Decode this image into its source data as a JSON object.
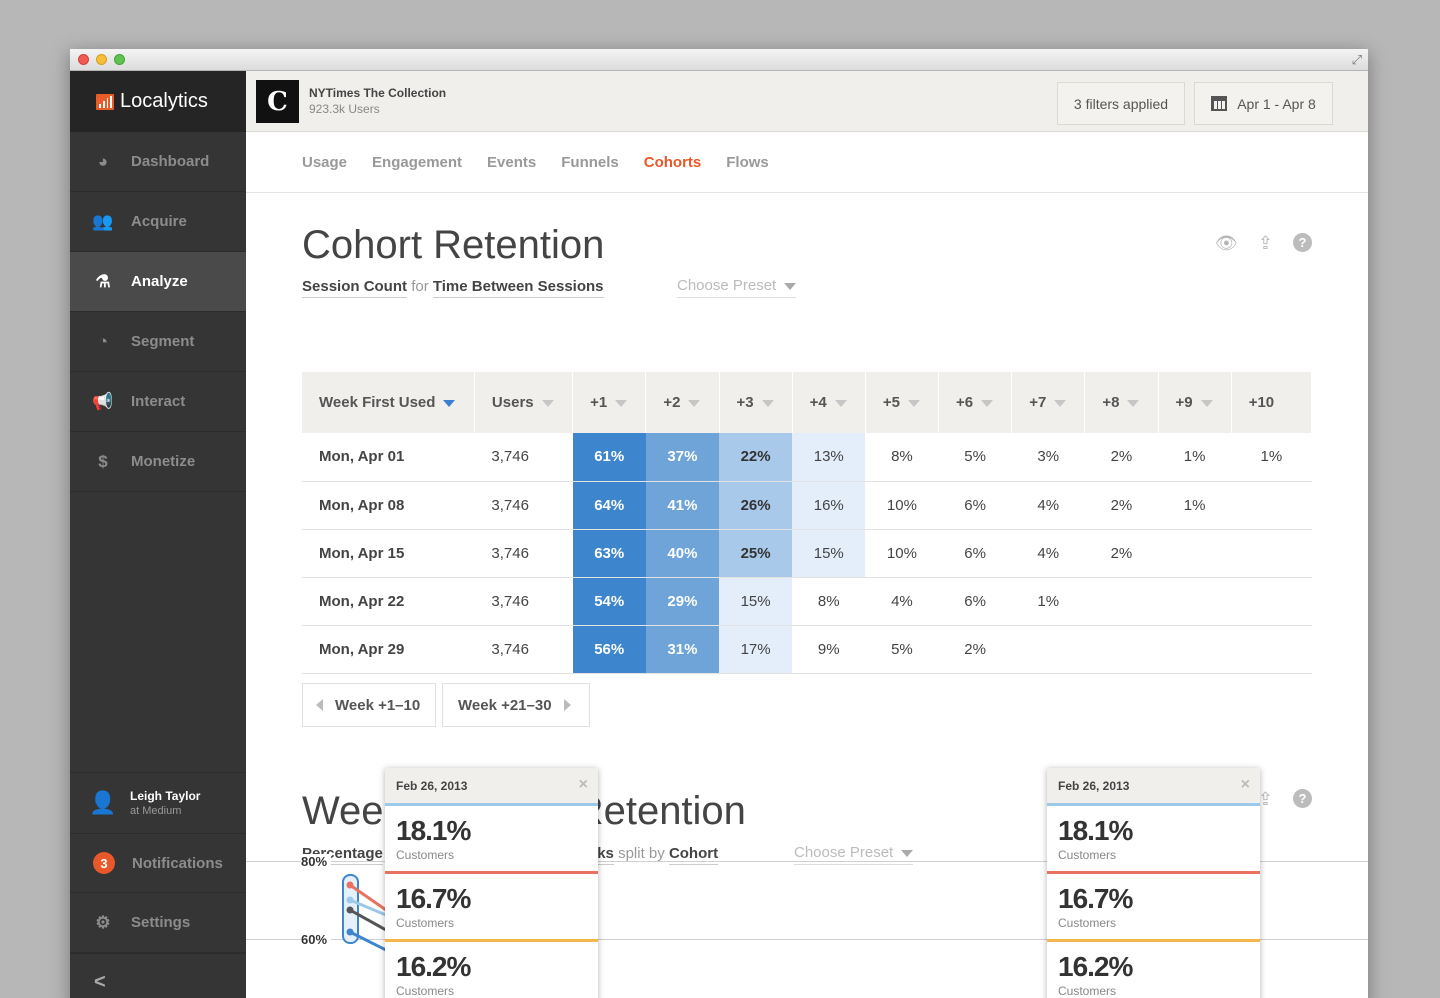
{
  "app": {
    "name": "Localytics"
  },
  "sidebar": {
    "items": [
      {
        "label": "Dashboard",
        "icon": "gauge-icon",
        "glyph": "◕"
      },
      {
        "label": "Acquire",
        "icon": "users-icon",
        "glyph": "👥"
      },
      {
        "label": "Analyze",
        "icon": "flask-icon",
        "glyph": "⚗"
      },
      {
        "label": "Segment",
        "icon": "segment-icon",
        "glyph": "◔"
      },
      {
        "label": "Interact",
        "icon": "megaphone-icon",
        "glyph": "📢"
      },
      {
        "label": "Monetize",
        "icon": "dollar-icon",
        "glyph": "$"
      }
    ],
    "active": "Analyze",
    "user": {
      "name": "Leigh Taylor",
      "org": "at Medium"
    },
    "notifications": {
      "label": "Notifications",
      "count": "3"
    },
    "settings": {
      "label": "Settings"
    },
    "collapse": "<"
  },
  "header": {
    "app_name": "NYTimes The Collection",
    "app_users": "923.3k Users",
    "app_icon_letter": "C",
    "filters": "3 filters applied",
    "date_range": "Apr 1 - Apr 8"
  },
  "tabs": [
    "Usage",
    "Engagement",
    "Events",
    "Funnels",
    "Cohorts",
    "Flows"
  ],
  "active_tab": "Cohorts",
  "cohort": {
    "title": "Cohort Retention",
    "metric": "Session Count",
    "for_word": "for",
    "dimension": "Time Between Sessions",
    "preset": "Choose Preset",
    "columns": [
      "Week First Used",
      "Users",
      "+1",
      "+2",
      "+3",
      "+4",
      "+5",
      "+6",
      "+7",
      "+8",
      "+9",
      "+10"
    ],
    "rows": [
      {
        "week": "Mon, Apr 01",
        "users": "3,746",
        "values": [
          "61%",
          "37%",
          "22%",
          "13%",
          "8%",
          "5%",
          "3%",
          "2%",
          "1%",
          "1%"
        ]
      },
      {
        "week": "Mon, Apr 08",
        "users": "3,746",
        "values": [
          "64%",
          "41%",
          "26%",
          "16%",
          "10%",
          "6%",
          "4%",
          "2%",
          "1%",
          ""
        ]
      },
      {
        "week": "Mon, Apr 15",
        "users": "3,746",
        "values": [
          "63%",
          "40%",
          "25%",
          "15%",
          "10%",
          "6%",
          "4%",
          "2%",
          "",
          ""
        ]
      },
      {
        "week": "Mon, Apr 22",
        "users": "3,746",
        "values": [
          "54%",
          "29%",
          "15%",
          "8%",
          "4%",
          "6%",
          "1%",
          "",
          "",
          ""
        ]
      },
      {
        "week": "Mon, Apr 29",
        "users": "3,746",
        "values": [
          "56%",
          "31%",
          "17%",
          "9%",
          "5%",
          "2%",
          "",
          "",
          "",
          ""
        ]
      }
    ],
    "heat_colors": [
      "#3d85cc",
      "#6ea4d8",
      "#a9c9ea",
      "#e3eefa"
    ],
    "prev_page": "Week +1–10",
    "next_page": "Week +21–30"
  },
  "weekly": {
    "title": "Weekly Cohort Retention",
    "metric": "Percentage",
    "metric_tail": "ks",
    "split_word": "split by",
    "split": "Cohort",
    "preset": "Choose Preset",
    "y_ticks": [
      "80%",
      "60%"
    ]
  },
  "tooltips": [
    {
      "date": "Feb 26, 2013",
      "close": "×",
      "sections": [
        {
          "value": "18.1%",
          "label": "Customers"
        },
        {
          "value": "16.7%",
          "label": "Customers"
        },
        {
          "value": "16.2%",
          "label": "Customers"
        }
      ]
    },
    {
      "date": "Feb 26, 2013",
      "close": "×",
      "sections": [
        {
          "value": "18.1%",
          "label": "Customers"
        },
        {
          "value": "16.7%",
          "label": "Customers"
        },
        {
          "value": "16.2%",
          "label": "Customers"
        }
      ]
    }
  ],
  "series_colors": [
    "#9cc8ea",
    "#e8725f",
    "#f3b64a"
  ]
}
